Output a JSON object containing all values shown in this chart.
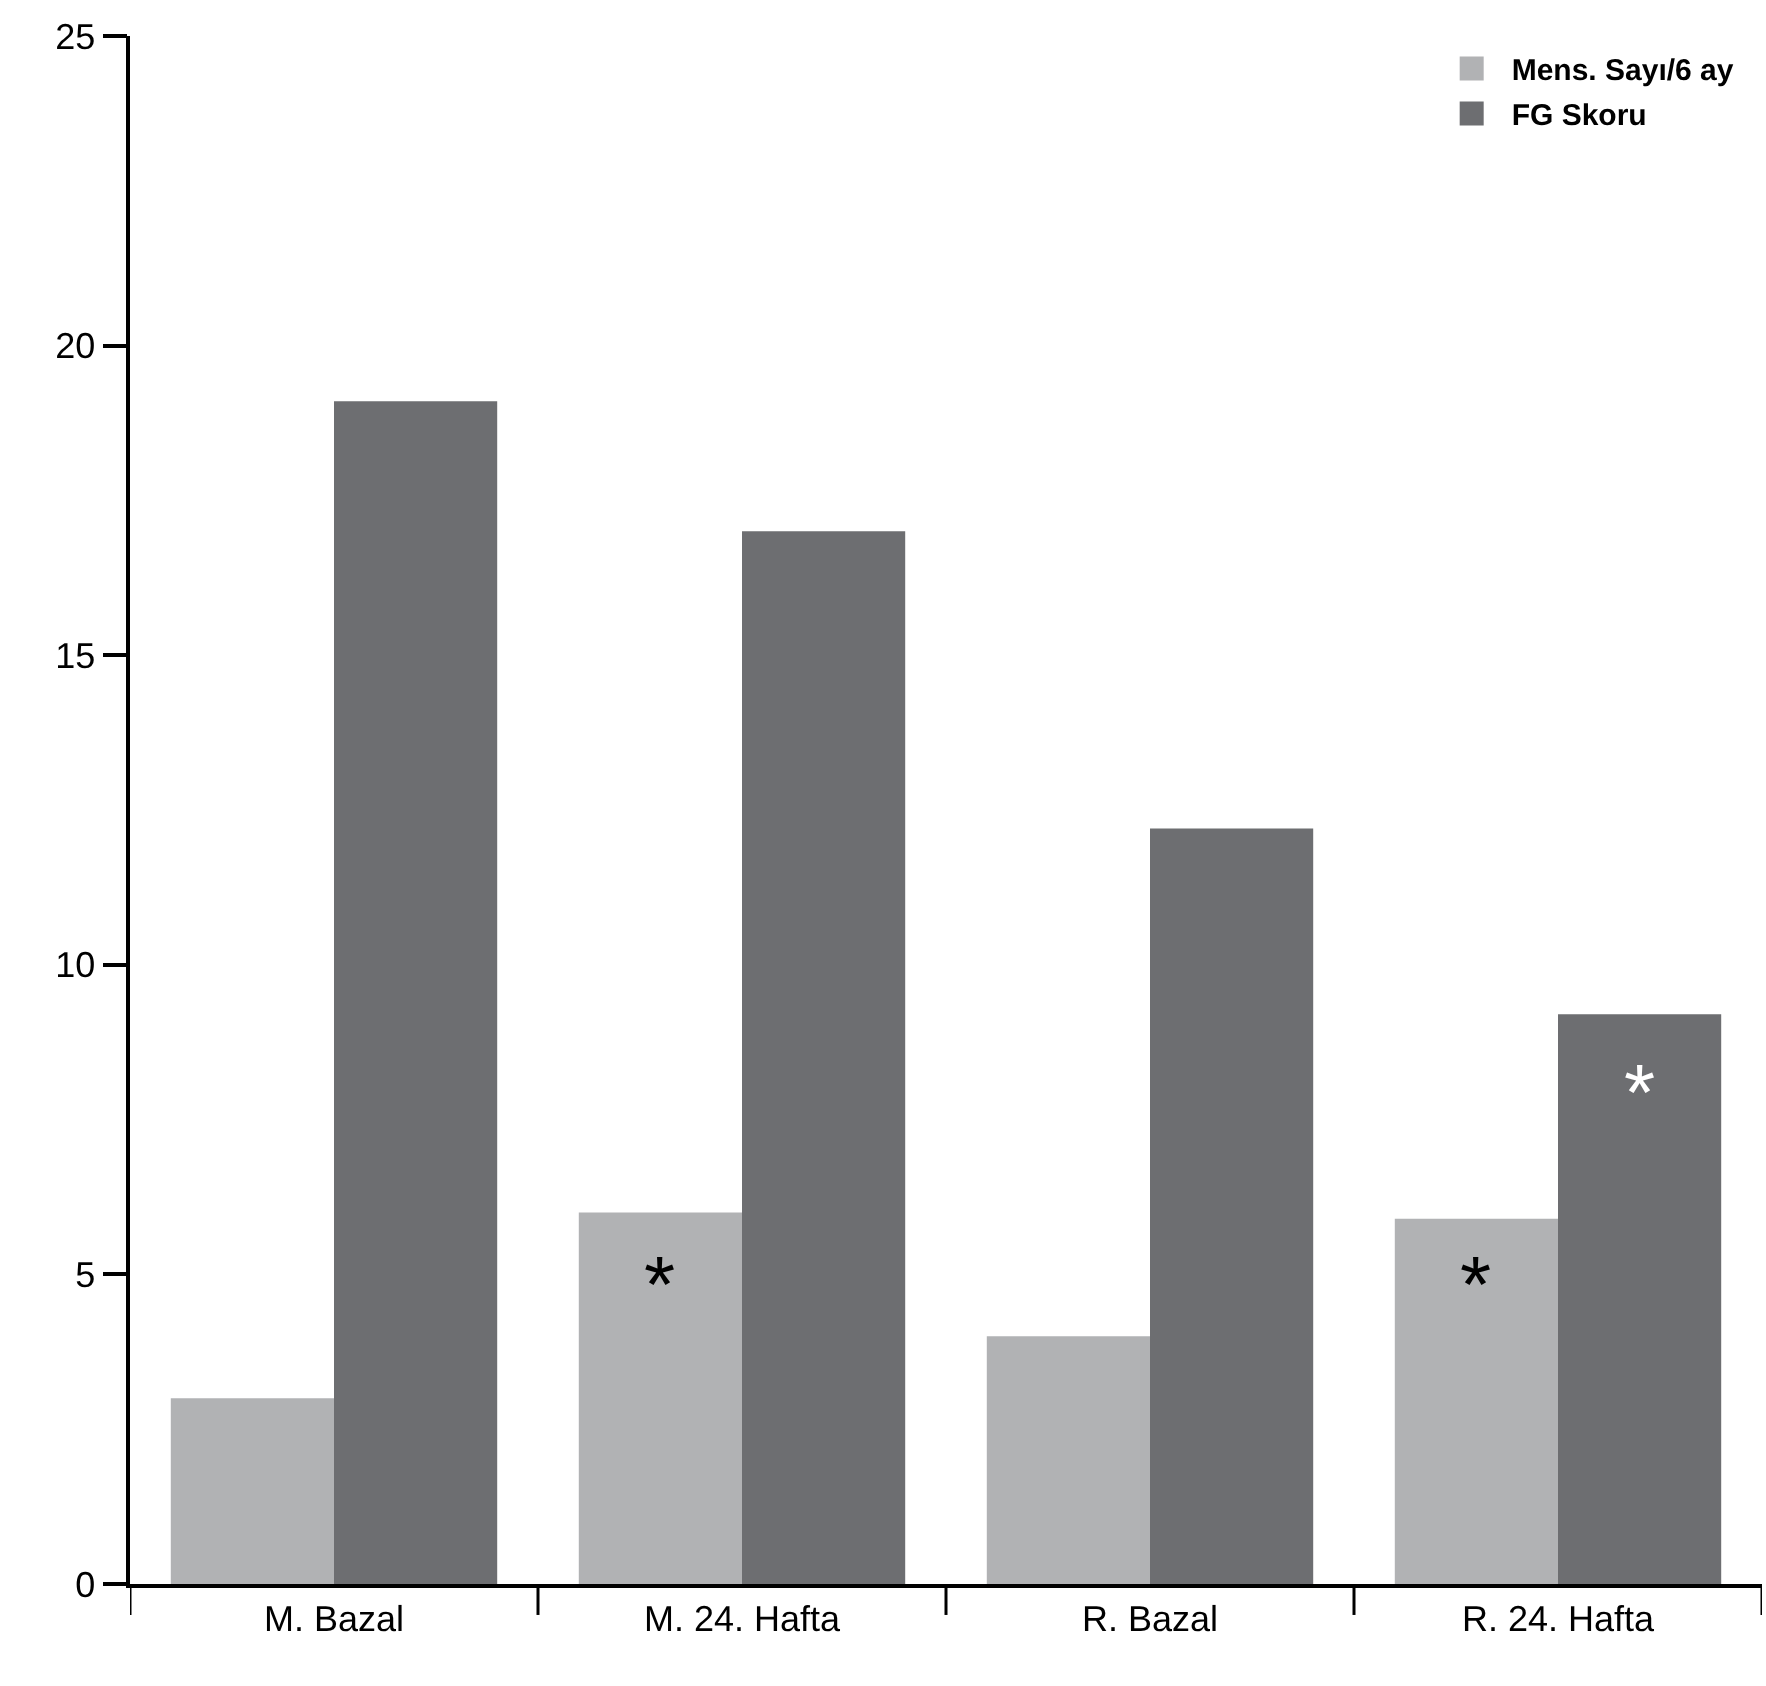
{
  "chart_data": {
    "type": "bar",
    "categories": [
      "M. Bazal",
      "M. 24. Hafta",
      "R. Bazal",
      "R. 24. Hafta"
    ],
    "series": [
      {
        "name": "Mens. Sayı/6 ay",
        "color": "#b1b2b4",
        "values": [
          3.0,
          6.0,
          4.0,
          5.9
        ]
      },
      {
        "name": "FG Skoru",
        "color": "#6d6e71",
        "values": [
          19.1,
          17.0,
          12.2,
          9.2
        ]
      }
    ],
    "ylim": [
      0,
      25
    ],
    "yticks": [
      0,
      5,
      10,
      15,
      20,
      25
    ],
    "annotations": [
      {
        "text": "*",
        "x": "M. 24. Hafta",
        "y": 4.8
      },
      {
        "text": "*",
        "x": "R. 24. Hafta",
        "y": 4.8
      },
      {
        "text": "*",
        "x": "R. 24. Hafta",
        "y": 7.9
      }
    ],
    "legend": "top right"
  }
}
